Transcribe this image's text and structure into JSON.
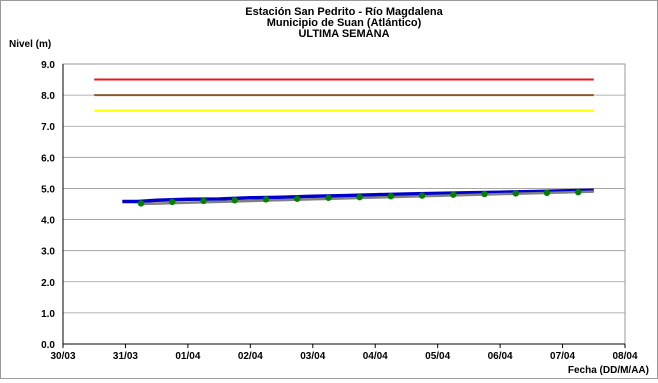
{
  "chart_data": {
    "type": "line",
    "title": [
      "Estación San Pedrito - Río Magdalena",
      "Municipio de Suan (Atlántico)",
      "ULTIMA SEMANA"
    ],
    "ylabel": "Nivel (m)",
    "xlabel": "Fecha (DD/M/AA)",
    "ylim": [
      0,
      9
    ],
    "yticks": [
      "0.0",
      "1.0",
      "2.0",
      "3.0",
      "4.0",
      "5.0",
      "6.0",
      "7.0",
      "8.0",
      "9.0"
    ],
    "xlim": [
      0,
      9
    ],
    "xticks": [
      "30/03",
      "31/03",
      "01/04",
      "02/04",
      "03/04",
      "04/04",
      "05/04",
      "06/04",
      "07/04",
      "08/04"
    ],
    "grid": "horizontal",
    "thresholds": [
      {
        "value": 8.5,
        "x": [
          0.5,
          8.5
        ],
        "color": "#e31a1c"
      },
      {
        "value": 8.0,
        "x": [
          0.5,
          8.5
        ],
        "color": "#8b5a2b"
      },
      {
        "value": 7.5,
        "x": [
          0.5,
          8.5
        ],
        "color": "#ffff00"
      }
    ],
    "series": [
      {
        "style": "line",
        "color": "#0000cc",
        "x": [
          0.95,
          1.2,
          1.5,
          2.0,
          2.5,
          3.0,
          3.5,
          4.0,
          4.5,
          5.0,
          5.5,
          6.0,
          6.5,
          7.0,
          7.5,
          8.0,
          8.5
        ],
        "y": [
          4.58,
          4.58,
          4.62,
          4.65,
          4.66,
          4.7,
          4.72,
          4.75,
          4.77,
          4.8,
          4.82,
          4.84,
          4.86,
          4.88,
          4.9,
          4.92,
          4.94
        ]
      },
      {
        "style": "line",
        "color": "#808080",
        "x": [
          1.25,
          8.5
        ],
        "y": [
          4.5,
          4.9
        ]
      },
      {
        "style": "points",
        "color": "#008000",
        "x": [
          1.25,
          1.75,
          2.25,
          2.75,
          3.25,
          3.75,
          4.25,
          4.75,
          5.25,
          5.75,
          6.25,
          6.75,
          7.25,
          7.75,
          8.25
        ],
        "y": [
          4.52,
          4.57,
          4.6,
          4.62,
          4.65,
          4.67,
          4.7,
          4.72,
          4.75,
          4.77,
          4.8,
          4.82,
          4.84,
          4.86,
          4.88
        ]
      }
    ]
  }
}
